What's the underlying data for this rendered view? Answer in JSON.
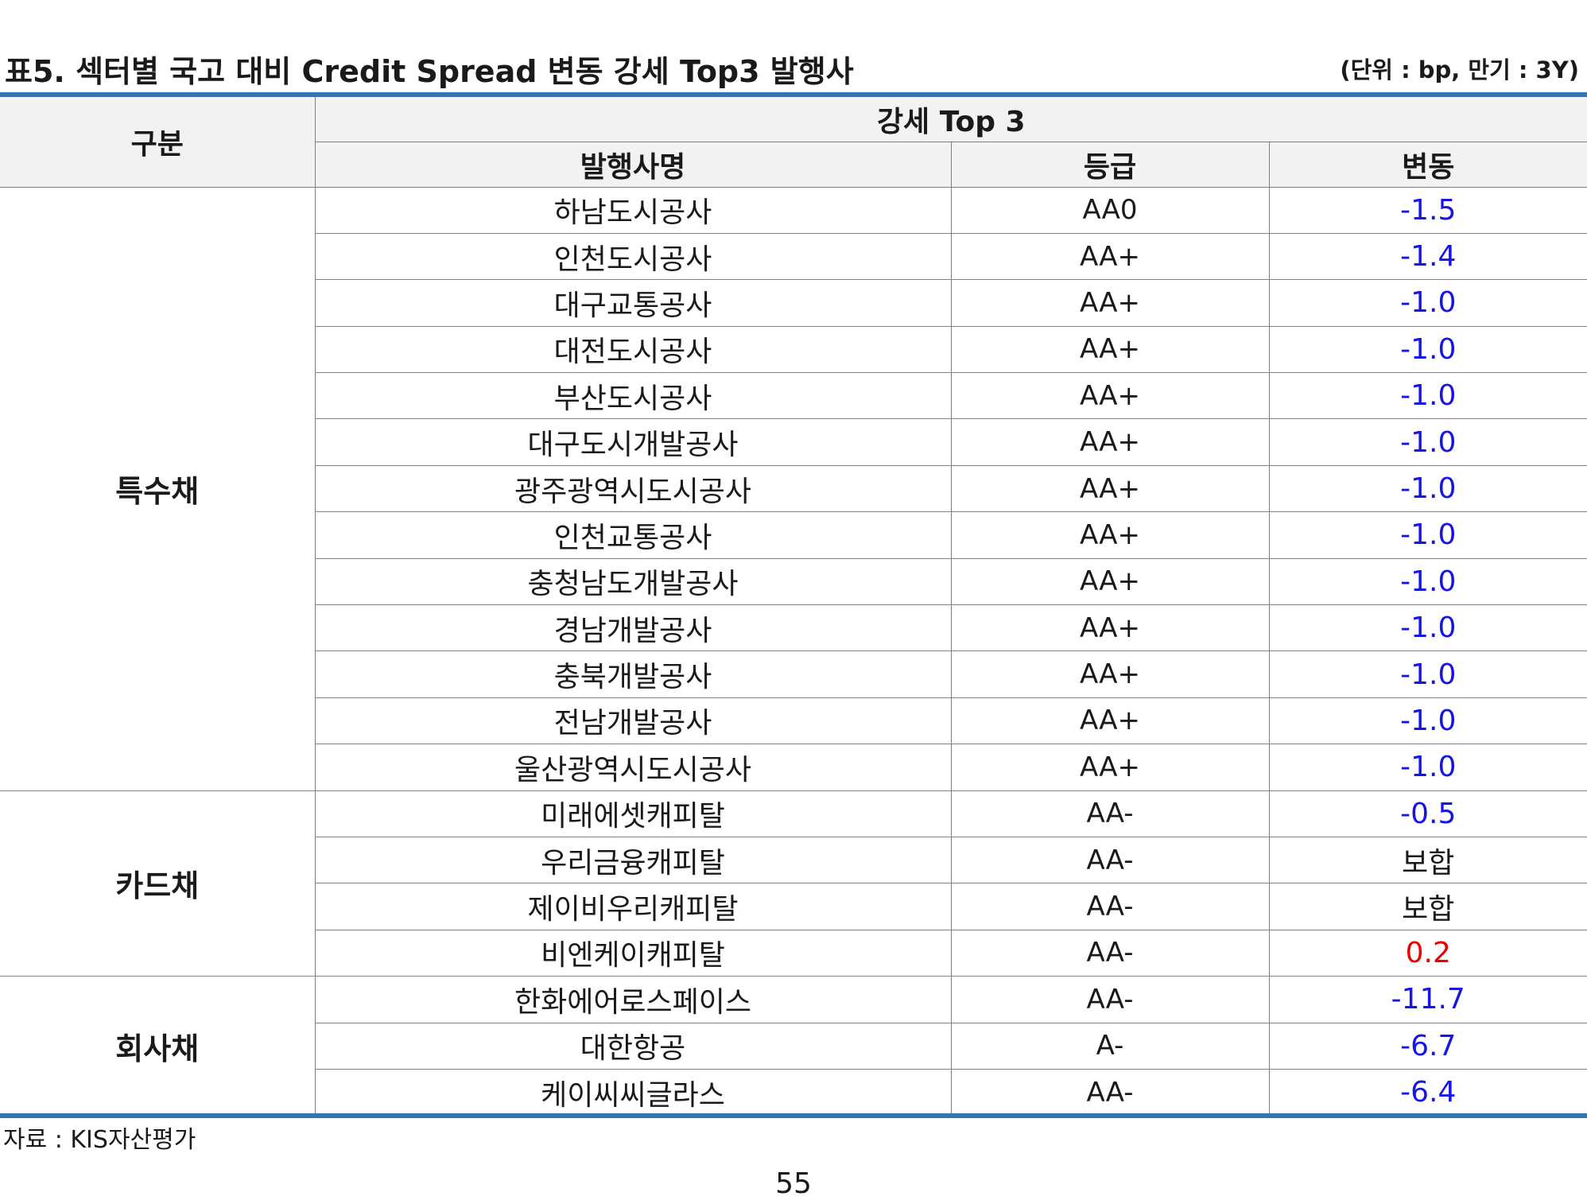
{
  "title": "표5. 섹터별 국고 대비 Credit Spread 변동 강세 Top3 발행사",
  "unit": "(단위 : bp, 만기 : 3Y)",
  "header": {
    "category": "구분",
    "group": "강세 Top 3",
    "issuer": "발행사명",
    "grade": "등급",
    "change": "변동"
  },
  "colors": {
    "accent": "#2e75b6",
    "negative": "#1515e8",
    "positive": "#e80000",
    "neutral": "#1a1a1a",
    "header_bg": "#f2f2f2"
  },
  "sectors": [
    {
      "name": "특수채",
      "rows": [
        {
          "issuer": "하남도시공사",
          "grade": "AA0",
          "change": "-1.5",
          "tone": "negative"
        },
        {
          "issuer": "인천도시공사",
          "grade": "AA+",
          "change": "-1.4",
          "tone": "negative"
        },
        {
          "issuer": "대구교통공사",
          "grade": "AA+",
          "change": "-1.0",
          "tone": "negative"
        },
        {
          "issuer": "대전도시공사",
          "grade": "AA+",
          "change": "-1.0",
          "tone": "negative"
        },
        {
          "issuer": "부산도시공사",
          "grade": "AA+",
          "change": "-1.0",
          "tone": "negative"
        },
        {
          "issuer": "대구도시개발공사",
          "grade": "AA+",
          "change": "-1.0",
          "tone": "negative"
        },
        {
          "issuer": "광주광역시도시공사",
          "grade": "AA+",
          "change": "-1.0",
          "tone": "negative"
        },
        {
          "issuer": "인천교통공사",
          "grade": "AA+",
          "change": "-1.0",
          "tone": "negative"
        },
        {
          "issuer": "충청남도개발공사",
          "grade": "AA+",
          "change": "-1.0",
          "tone": "negative"
        },
        {
          "issuer": "경남개발공사",
          "grade": "AA+",
          "change": "-1.0",
          "tone": "negative"
        },
        {
          "issuer": "충북개발공사",
          "grade": "AA+",
          "change": "-1.0",
          "tone": "negative"
        },
        {
          "issuer": "전남개발공사",
          "grade": "AA+",
          "change": "-1.0",
          "tone": "negative"
        },
        {
          "issuer": "울산광역시도시공사",
          "grade": "AA+",
          "change": "-1.0",
          "tone": "negative"
        }
      ]
    },
    {
      "name": "카드채",
      "rows": [
        {
          "issuer": "미래에셋캐피탈",
          "grade": "AA-",
          "change": "-0.5",
          "tone": "negative"
        },
        {
          "issuer": "우리금융캐피탈",
          "grade": "AA-",
          "change": "보합",
          "tone": "neutral"
        },
        {
          "issuer": "제이비우리캐피탈",
          "grade": "AA-",
          "change": "보합",
          "tone": "neutral"
        },
        {
          "issuer": "비엔케이캐피탈",
          "grade": "AA-",
          "change": "0.2",
          "tone": "positive"
        }
      ]
    },
    {
      "name": "회사채",
      "rows": [
        {
          "issuer": "한화에어로스페이스",
          "grade": "AA-",
          "change": "-11.7",
          "tone": "negative"
        },
        {
          "issuer": "대한항공",
          "grade": "A-",
          "change": "-6.7",
          "tone": "negative"
        },
        {
          "issuer": "케이씨씨글라스",
          "grade": "AA-",
          "change": "-6.4",
          "tone": "negative"
        }
      ]
    }
  ],
  "source": "자료 : KIS자산평가",
  "page_number": "55"
}
